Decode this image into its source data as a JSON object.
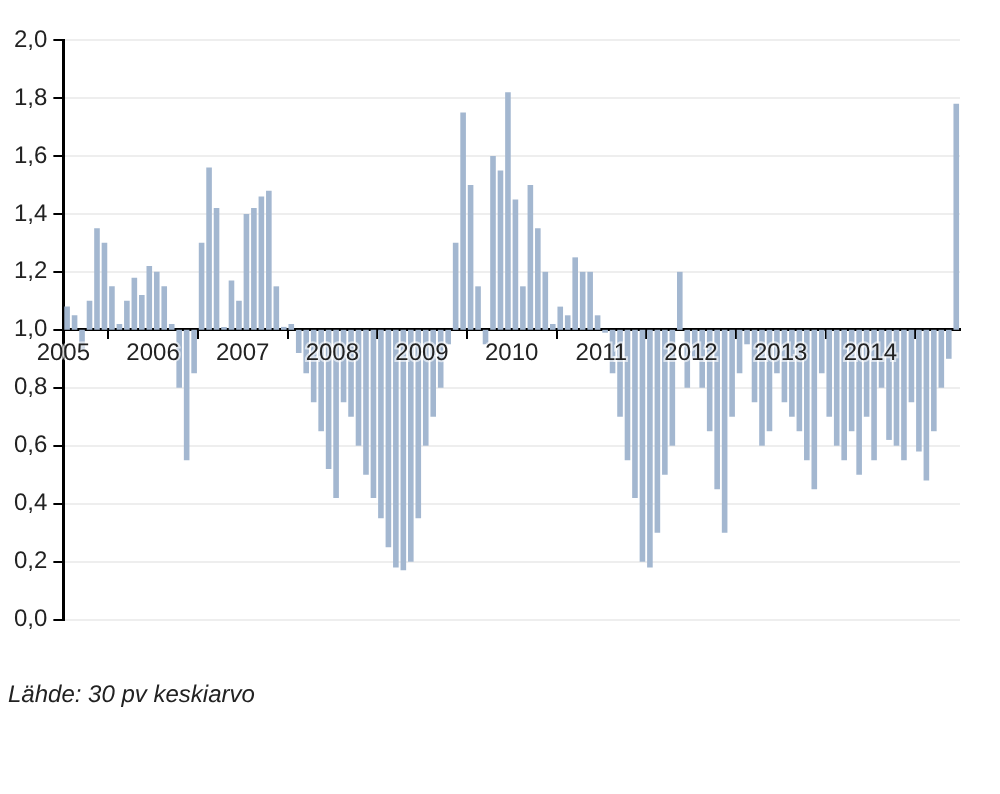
{
  "chart_data": {
    "type": "bar",
    "color": "#a3b7d0",
    "x": [
      "2005-01",
      "2005-02",
      "2005-03",
      "2005-04",
      "2005-05",
      "2005-06",
      "2005-07",
      "2005-08",
      "2005-09",
      "2005-10",
      "2005-11",
      "2005-12",
      "2006-01",
      "2006-02",
      "2006-03",
      "2006-04",
      "2006-05",
      "2006-06",
      "2006-07",
      "2006-08",
      "2006-09",
      "2006-10",
      "2006-11",
      "2006-12",
      "2007-01",
      "2007-02",
      "2007-03",
      "2007-04",
      "2007-05",
      "2007-06",
      "2007-07",
      "2007-08",
      "2007-09",
      "2007-10",
      "2007-11",
      "2007-12",
      "2008-01",
      "2008-02",
      "2008-03",
      "2008-04",
      "2008-05",
      "2008-06",
      "2008-07",
      "2008-08",
      "2008-09",
      "2008-10",
      "2008-11",
      "2008-12",
      "2009-01",
      "2009-02",
      "2009-03",
      "2009-04",
      "2009-05",
      "2009-06",
      "2009-07",
      "2009-08",
      "2009-09",
      "2009-10",
      "2009-11",
      "2009-12",
      "2010-01",
      "2010-02",
      "2010-03",
      "2010-04",
      "2010-05",
      "2010-06",
      "2010-07",
      "2010-08",
      "2010-09",
      "2010-10",
      "2010-11",
      "2010-12",
      "2011-01",
      "2011-02",
      "2011-03",
      "2011-04",
      "2011-05",
      "2011-06",
      "2011-07",
      "2011-08",
      "2011-09",
      "2011-10",
      "2011-11",
      "2011-12",
      "2012-01",
      "2012-02",
      "2012-03",
      "2012-04",
      "2012-05",
      "2012-06",
      "2012-07",
      "2012-08",
      "2012-09",
      "2012-10",
      "2012-11",
      "2012-12",
      "2013-01",
      "2013-02",
      "2013-03",
      "2013-04",
      "2013-05",
      "2013-06",
      "2013-07",
      "2013-08",
      "2013-09",
      "2013-10",
      "2013-11",
      "2013-12",
      "2014-01",
      "2014-02",
      "2014-03",
      "2014-04",
      "2014-05",
      "2014-06",
      "2014-07",
      "2014-08",
      "2014-09",
      "2014-10",
      "2014-11",
      "2014-12"
    ],
    "base": [
      1,
      1,
      1,
      1,
      1,
      1,
      1,
      1,
      1,
      1,
      1,
      1,
      1,
      1,
      1,
      1,
      1,
      1,
      1,
      1,
      1,
      1,
      1,
      1,
      1,
      1,
      1,
      1,
      1,
      1,
      1,
      1,
      1,
      1,
      1,
      1,
      1,
      1,
      1,
      1,
      1,
      1,
      1,
      1,
      1,
      1,
      1,
      1,
      1,
      1,
      1,
      1,
      1,
      1,
      1,
      1,
      1,
      1,
      1,
      1,
      1,
      1,
      1,
      1,
      1,
      1,
      1,
      1,
      1,
      1,
      1,
      1,
      1,
      1,
      1,
      1,
      1,
      1,
      1,
      1,
      1,
      1,
      1,
      1,
      1,
      1,
      1,
      1,
      1,
      1,
      1,
      1,
      1,
      1,
      1,
      1,
      1,
      1,
      1,
      1,
      1,
      1,
      1,
      1,
      1,
      1,
      1,
      1,
      1,
      1,
      1,
      1,
      1,
      1,
      1,
      1,
      1,
      1,
      1,
      1
    ],
    "values": [
      0.08,
      0.05,
      -0.07,
      0.1,
      0.35,
      0.3,
      0.15,
      0.02,
      0.1,
      0.18,
      0.12,
      0.22,
      0.2,
      0.15,
      0.02,
      -0.2,
      -0.45,
      -0.15,
      0.3,
      0.56,
      0.42,
      0.01,
      0.17,
      0.1,
      0.4,
      0.42,
      0.46,
      0.48,
      0.15,
      0.01,
      0.02,
      -0.08,
      -0.15,
      -0.25,
      -0.35,
      -0.48,
      -0.58,
      -0.25,
      -0.3,
      -0.4,
      -0.5,
      -0.58,
      -0.65,
      -0.75,
      -0.82,
      -0.83,
      -0.8,
      -0.65,
      -0.4,
      -0.3,
      -0.2,
      -0.05,
      0.3,
      0.75,
      0.5,
      0.15,
      -0.05,
      0.6,
      0.55,
      0.82,
      0.45,
      0.15,
      0.5,
      0.35,
      0.2,
      0.02,
      0.08,
      0.05,
      0.25,
      0.2,
      0.2,
      0.05,
      -0.01,
      -0.15,
      -0.3,
      -0.45,
      -0.58,
      -0.8,
      -0.82,
      -0.7,
      -0.5,
      -0.4,
      0.2,
      -0.2,
      -0.1,
      -0.2,
      -0.35,
      -0.55,
      -0.7,
      -0.3,
      -0.15,
      -0.05,
      -0.25,
      -0.4,
      -0.35,
      -0.15,
      -0.25,
      -0.3,
      -0.35,
      -0.45,
      -0.55,
      -0.15,
      -0.3,
      -0.4,
      -0.45,
      -0.35,
      -0.5,
      -0.3,
      -0.45,
      -0.2,
      -0.38,
      -0.4,
      -0.45,
      -0.25,
      -0.42,
      -0.52,
      -0.35,
      -0.2,
      -0.1,
      0.78
    ],
    "xlim": [
      "2005",
      "2015"
    ],
    "xticks": [
      "2005",
      "2006",
      "2007",
      "2008",
      "2009",
      "2010",
      "2011",
      "2012",
      "2013",
      "2014"
    ],
    "ylim": [
      0,
      2
    ],
    "yticks": [
      {
        "value": 0,
        "label": "0,0"
      },
      {
        "value": 0.2,
        "label": "0,2"
      },
      {
        "value": 0.4,
        "label": "0,4"
      },
      {
        "value": 0.6,
        "label": "0,6"
      },
      {
        "value": 0.8,
        "label": "0,8"
      },
      {
        "value": 1,
        "label": "1,0"
      },
      {
        "value": 1.2,
        "label": "1,2"
      },
      {
        "value": 1.4,
        "label": "1,4"
      },
      {
        "value": 1.6,
        "label": "1,6"
      },
      {
        "value": 1.8,
        "label": "1,8"
      },
      {
        "value": 2,
        "label": "2,0"
      }
    ],
    "grid": "y",
    "annotations": [
      "Lähde: 30 pv keskiarvo"
    ]
  }
}
